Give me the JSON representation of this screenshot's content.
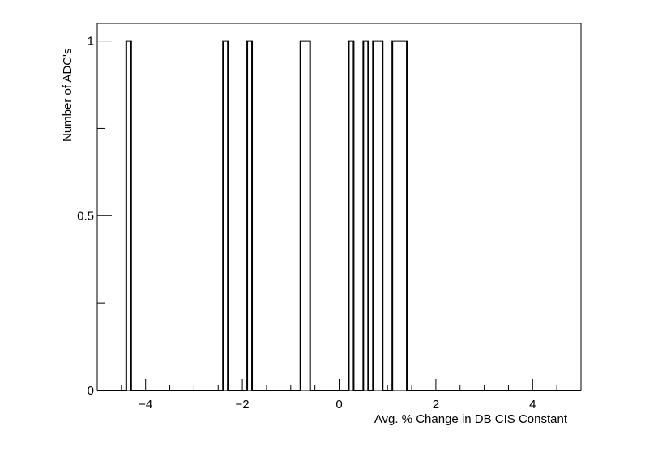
{
  "chart_data": {
    "type": "bar",
    "style": "histogram-outline",
    "xlabel": "Avg. % Change in DB CIS Constant",
    "ylabel": "Number of ADC's",
    "xlim": [
      -5,
      5
    ],
    "ylim": [
      0,
      1.05
    ],
    "grid": false,
    "legend": "none",
    "x_ticks": [
      -4,
      -2,
      0,
      2,
      4
    ],
    "x_tick_labels": [
      "−4",
      "−2",
      "0",
      "2",
      "4"
    ],
    "y_ticks": [
      0,
      0.5,
      1
    ],
    "y_tick_labels": [
      "0",
      "0.5",
      "1"
    ],
    "bin_width": 0.1,
    "bins": [
      {
        "x_low": -4.4,
        "x_high": -4.3,
        "count": 1
      },
      {
        "x_low": -2.4,
        "x_high": -2.3,
        "count": 1
      },
      {
        "x_low": -1.9,
        "x_high": -1.8,
        "count": 1
      },
      {
        "x_low": -0.8,
        "x_high": -0.6,
        "count": 1
      },
      {
        "x_low": 0.2,
        "x_high": 0.3,
        "count": 1
      },
      {
        "x_low": 0.5,
        "x_high": 0.6,
        "count": 1
      },
      {
        "x_low": 0.7,
        "x_high": 0.9,
        "count": 1
      },
      {
        "x_low": 1.1,
        "x_high": 1.4,
        "count": 1
      }
    ],
    "colors": {
      "line": "#000000",
      "background": "#ffffff"
    }
  }
}
